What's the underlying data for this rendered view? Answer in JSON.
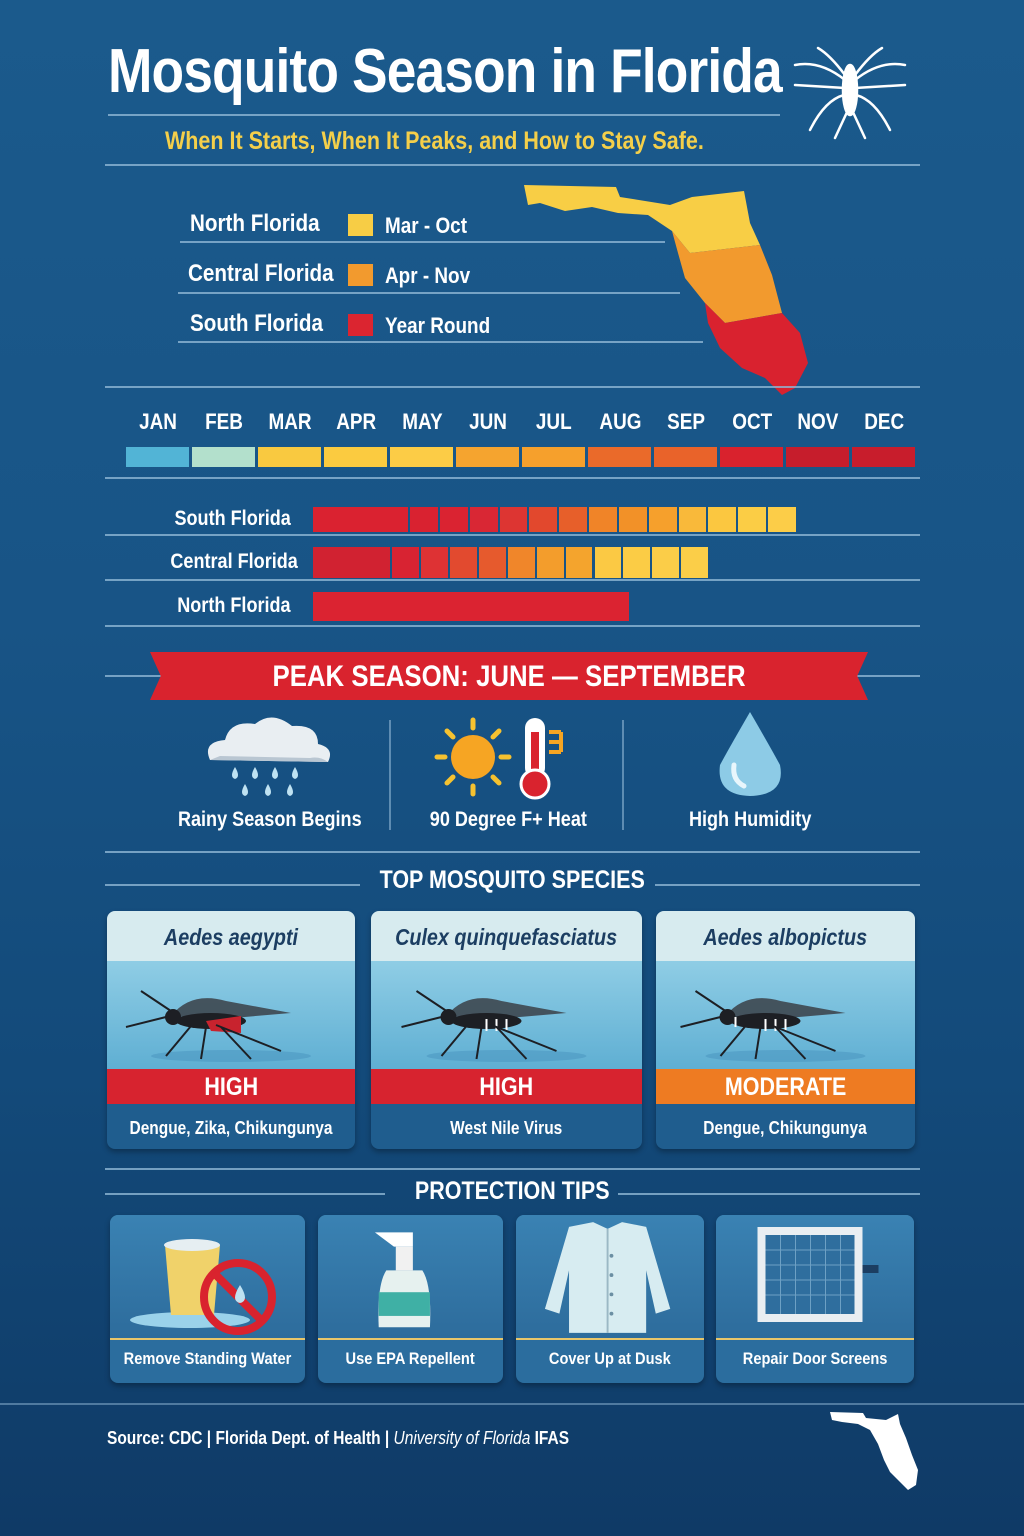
{
  "header": {
    "title": "Mosquito Season in Florida",
    "subtitle": "When It Starts, When It Peaks, and How to Stay Safe."
  },
  "legend": [
    {
      "region": "North Florida",
      "season": "Mar - Oct",
      "color": "#f7cd45"
    },
    {
      "region": "Central Florida",
      "season": "Apr - Nov",
      "color": "#f29a2e"
    },
    {
      "region": "South Florida",
      "season": "Year Round",
      "color": "#db2530"
    }
  ],
  "months": [
    "JAN",
    "FEB",
    "MAR",
    "APR",
    "MAY",
    "JUN",
    "JUL",
    "AUG",
    "SEP",
    "OCT",
    "NOV",
    "DEC"
  ],
  "month_colors": [
    "#52b4d6",
    "#b3e0cc",
    "#f9c940",
    "#fbcb40",
    "#fccc46",
    "#f5a42f",
    "#f6a02c",
    "#ea6a2a",
    "#e9632a",
    "#d9222d",
    "#c61d2c",
    "#c81d2c"
  ],
  "regions": [
    {
      "label": "South Florida",
      "segments": [
        "#da2230",
        "#d92230",
        "#da2331",
        "#d92734",
        "#dd3532",
        "#e2482d",
        "#e75f2a",
        "#f08428",
        "#f29128",
        "#f6a02c",
        "#f9b93a",
        "#fbc740",
        "#fbcd45",
        "#fccd48"
      ]
    },
    {
      "label": "Central Florida",
      "segments": [
        "#d12231",
        "#d82332",
        "#de3234",
        "#e24a2f",
        "#e65a2d",
        "#f0862a",
        "#f39d2c",
        "#f4a42d",
        "#fbc944",
        "#fbcc45",
        "#fbcd48",
        "#fbce48"
      ]
    },
    {
      "label": "North Florida",
      "segments": [
        "#db2331"
      ]
    }
  ],
  "peak": {
    "label": "PEAK SEASON: JUNE — SEPTEMBER",
    "conditions": [
      "Rainy Season Begins",
      "90 Degree F+ Heat",
      "High Humidity"
    ]
  },
  "species": {
    "title": "TOP MOSQUITO SPECIES",
    "items": [
      {
        "name": "Aedes aegypti",
        "risk": "HIGH",
        "risk_color": "#d7232f",
        "diseases": "Dengue, Zika, Chikungunya"
      },
      {
        "name": "Culex quinquefasciatus",
        "risk": "HIGH",
        "risk_color": "#d7232f",
        "diseases": "West Nile Virus"
      },
      {
        "name": "Aedes albopictus",
        "risk": "MODERATE",
        "risk_color": "#ee7b22",
        "diseases": "Dengue, Chikungunya"
      }
    ]
  },
  "tips": {
    "title": "PROTECTION TIPS",
    "items": [
      "Remove Standing Water",
      "Use EPA Repellent",
      "Cover Up at Dusk",
      "Repair Door Screens"
    ]
  },
  "footer": {
    "source_prefix": "Source: CDC",
    "sep": "|",
    "org": "Florida Dept. of Health",
    "univ": "University of Florida",
    "ifas": "IFAS"
  }
}
